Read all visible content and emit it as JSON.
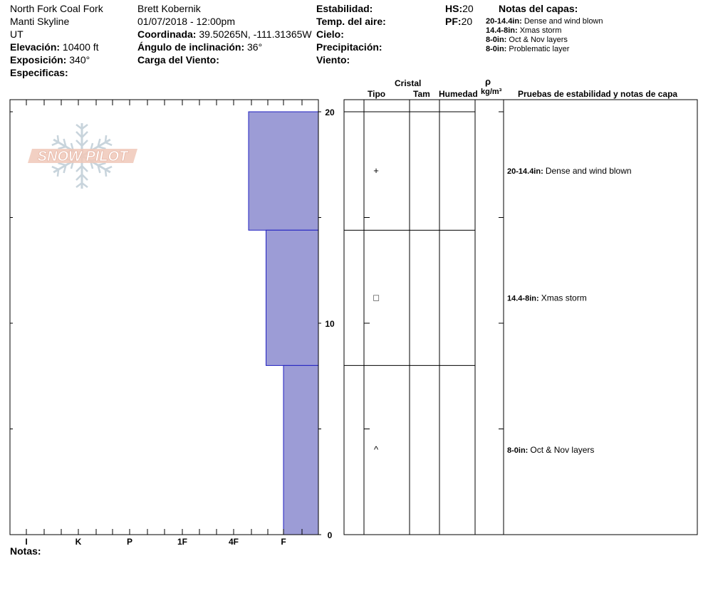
{
  "header": {
    "location": "North Fork Coal Fork",
    "area": "Manti Skyline",
    "state": "UT",
    "elevation_label": "Elevación:",
    "elevation_value": "10400 ft",
    "aspect_label": "Exposición:",
    "aspect_value": "340°",
    "specifics_label": "Especificas:",
    "observer": "Brett Kobernik",
    "datetime": "01/07/2018 - 12:00pm",
    "coord_label": "Coordinada:",
    "coord_value": "39.50265N, -111.31365W",
    "slope_label": "Ángulo de inclinación:",
    "slope_value": "36°",
    "wind_load_label": "Carga del Viento:",
    "stability_label": "Estabilidad:",
    "air_temp_label": "Temp. del aire:",
    "sky_label": "Cielo:",
    "precip_label": "Precipitación:",
    "wind_label": "Viento:",
    "hs_label": "HS:",
    "hs_value": "20",
    "pf_label": "PF:",
    "pf_value": "20",
    "layer_notes_title": "Notas del capas:"
  },
  "layer_notes": [
    {
      "range": "20-14.4in:",
      "text": "Dense and wind blown"
    },
    {
      "range": "14.4-8in:",
      "text": "Xmas storm"
    },
    {
      "range": "8-0in:",
      "text": "Oct & Nov layers"
    },
    {
      "range": "8-0in:",
      "text": "Problematic layer"
    }
  ],
  "table_headers": {
    "crystal": "Cristal",
    "type": "Tipo",
    "size": "Tam",
    "moisture": "Humedad",
    "rho": "ρ",
    "density_unit": "kg/m³",
    "tests": "Pruebas de estabilidad y notas de capa"
  },
  "logo_text": "SNOW PILOT",
  "notes_label": "Notas:",
  "colors": {
    "hardness_fill": "#9c9cd6",
    "hardness_stroke": "#2020c0",
    "logo": "#f0c8b8",
    "flake": "#c8d4dc"
  },
  "chart_data": {
    "type": "bar",
    "orientation": "horizontal",
    "y_ticks": [
      0,
      10,
      20
    ],
    "ylim": [
      0,
      20
    ],
    "x_categories": [
      "I",
      "K",
      "P",
      "1F",
      "4F",
      "F"
    ],
    "layers": [
      {
        "top": 20,
        "bottom": 14.4,
        "hardness": 4.3,
        "grain_symbol": "+",
        "grain": "precipitation particles",
        "note_range": "20-14.4in:",
        "note": "Dense and wind blown"
      },
      {
        "top": 14.4,
        "bottom": 8,
        "hardness": 4.65,
        "grain_symbol": "□",
        "grain": "faceted crystals",
        "note_range": "14.4-8in:",
        "note": "Xmas storm"
      },
      {
        "top": 8,
        "bottom": 0,
        "hardness": 5,
        "grain_symbol": "^",
        "grain": "depth hoar",
        "note_range": "8-0in:",
        "note": "Oct & Nov layers"
      }
    ]
  }
}
